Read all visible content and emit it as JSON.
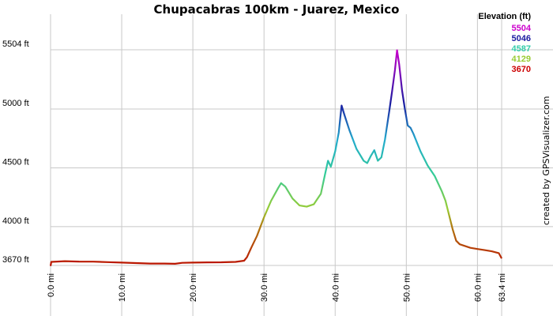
{
  "chart_data": {
    "type": "line",
    "title": "Chupacabras 100km - Juarez, Mexico",
    "xlabel": "",
    "ylabel": "",
    "xlim": [
      0,
      63.4
    ],
    "ylim": [
      3670,
      5504
    ],
    "grid": true,
    "y_ticks": [
      {
        "value": 3670,
        "label": "3670 ft"
      },
      {
        "value": 4000,
        "label": "4000 ft"
      },
      {
        "value": 4500,
        "label": "4500 ft"
      },
      {
        "value": 5000,
        "label": "5000 ft"
      },
      {
        "value": 5504,
        "label": "5504 ft"
      }
    ],
    "x_ticks": [
      {
        "value": 0,
        "label": "0.0 mi"
      },
      {
        "value": 10,
        "label": "10.0 mi"
      },
      {
        "value": 20,
        "label": "20.0 mi"
      },
      {
        "value": 30,
        "label": "30.0 mi"
      },
      {
        "value": 40,
        "label": "40.0 mi"
      },
      {
        "value": 50,
        "label": "50.0 mi"
      },
      {
        "value": 60,
        "label": "60.0 mi"
      },
      {
        "value": 63.4,
        "label": "63.4 mi"
      }
    ],
    "legend": {
      "title": "Elevation (ft)",
      "position": "top-right",
      "items": [
        {
          "label": "5504",
          "color": "#cc00cc"
        },
        {
          "label": "5046",
          "color": "#1a1aa0"
        },
        {
          "label": "4587",
          "color": "#33ccaa"
        },
        {
          "label": "4129",
          "color": "#99cc33"
        },
        {
          "label": "3670",
          "color": "#cc0000"
        }
      ]
    },
    "credit": "created by GPSVisualizer.com",
    "series": [
      {
        "points": [
          [
            0,
            3665
          ],
          [
            0.1,
            3700
          ],
          [
            2,
            3706
          ],
          [
            4,
            3703
          ],
          [
            6,
            3702
          ],
          [
            8,
            3698
          ],
          [
            10,
            3694
          ],
          [
            12,
            3690
          ],
          [
            14,
            3686
          ],
          [
            16,
            3686
          ],
          [
            17.5,
            3684
          ],
          [
            18.5,
            3692
          ],
          [
            20,
            3694
          ],
          [
            22,
            3696
          ],
          [
            24,
            3697
          ],
          [
            26,
            3700
          ],
          [
            27.2,
            3710
          ],
          [
            27.6,
            3740
          ],
          [
            28.2,
            3820
          ],
          [
            29,
            3920
          ],
          [
            30,
            4080
          ],
          [
            31,
            4220
          ],
          [
            32,
            4330
          ],
          [
            32.4,
            4370
          ],
          [
            33,
            4340
          ],
          [
            34,
            4240
          ],
          [
            35,
            4180
          ],
          [
            36,
            4170
          ],
          [
            37,
            4190
          ],
          [
            38,
            4280
          ],
          [
            38.6,
            4450
          ],
          [
            39,
            4560
          ],
          [
            39.4,
            4510
          ],
          [
            40,
            4640
          ],
          [
            40.5,
            4800
          ],
          [
            40.9,
            5030
          ],
          [
            41.3,
            4950
          ],
          [
            42,
            4820
          ],
          [
            43,
            4660
          ],
          [
            44,
            4560
          ],
          [
            44.5,
            4540
          ],
          [
            45,
            4600
          ],
          [
            45.5,
            4650
          ],
          [
            46,
            4560
          ],
          [
            46.5,
            4590
          ],
          [
            47,
            4740
          ],
          [
            47.6,
            4980
          ],
          [
            48,
            5150
          ],
          [
            48.4,
            5330
          ],
          [
            48.7,
            5500
          ],
          [
            49,
            5380
          ],
          [
            49.4,
            5160
          ],
          [
            49.8,
            5000
          ],
          [
            50.2,
            4860
          ],
          [
            50.6,
            4840
          ],
          [
            51,
            4790
          ],
          [
            52,
            4640
          ],
          [
            53,
            4520
          ],
          [
            54,
            4430
          ],
          [
            55,
            4300
          ],
          [
            55.5,
            4220
          ],
          [
            56,
            4100
          ],
          [
            56.5,
            3980
          ],
          [
            57,
            3880
          ],
          [
            57.5,
            3850
          ],
          [
            58,
            3840
          ],
          [
            59,
            3820
          ],
          [
            60,
            3810
          ],
          [
            61,
            3800
          ],
          [
            62,
            3790
          ],
          [
            63,
            3775
          ],
          [
            63.4,
            3730
          ]
        ]
      }
    ]
  }
}
